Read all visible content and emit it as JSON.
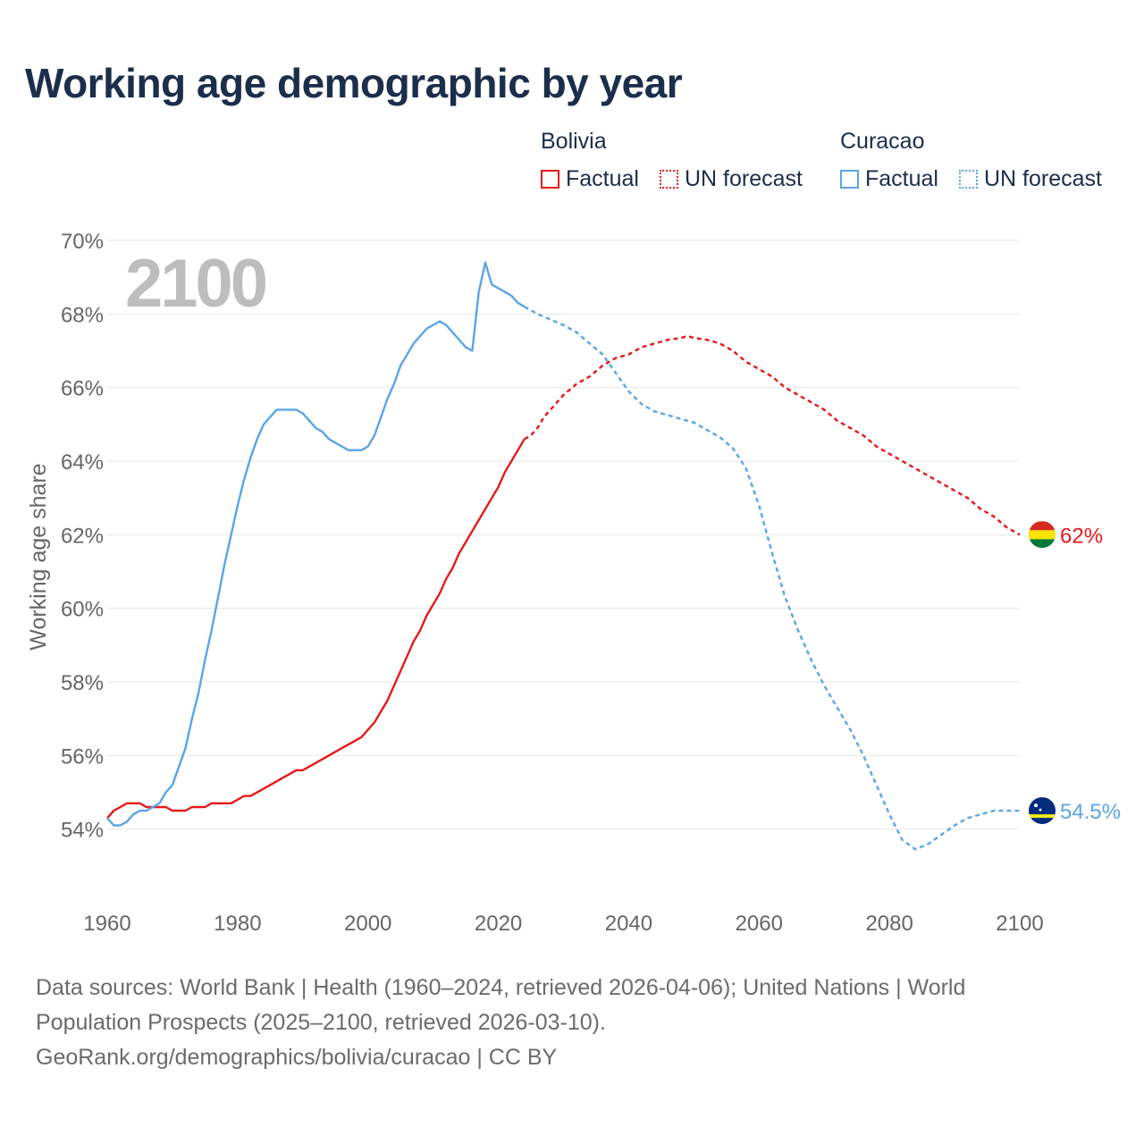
{
  "title": "Working age demographic by year",
  "year_watermark": "2100",
  "legend": {
    "groups": [
      {
        "country": "Bolivia",
        "color": "#e41a1c",
        "factual_label": "Factual",
        "forecast_label": "UN forecast"
      },
      {
        "country": "Curacao",
        "color": "#5aa5e6",
        "factual_label": "Factual",
        "forecast_label": "UN forecast"
      }
    ]
  },
  "footer": {
    "line1": "Data sources: World Bank | Health (1960–2024, retrieved 2026-04-06); United Nations | World",
    "line2": "Population Prospects (2025–2100, retrieved 2026-03-10).",
    "line3": "GeoRank.org/demographics/bolivia/curacao | CC BY"
  },
  "chart_data": {
    "type": "line",
    "ylabel": "Working age share",
    "xlabel": "",
    "xlim": [
      1960,
      2100
    ],
    "ylim": [
      52,
      70
    ],
    "x_ticks": [
      1960,
      1980,
      2000,
      2020,
      2040,
      2060,
      2080,
      2100
    ],
    "y_ticks": [
      54,
      56,
      58,
      60,
      62,
      64,
      66,
      68,
      70
    ],
    "y_tick_labels": [
      "54%",
      "56%",
      "58%",
      "60%",
      "62%",
      "64%",
      "66%",
      "68%",
      "70%"
    ],
    "forecast_start_year": 2024,
    "series": [
      {
        "name": "Bolivia",
        "color": "#e41a1c",
        "end_label": "62%",
        "flag": [
          "#d52b1e",
          "#f9e300",
          "#007934"
        ],
        "points": [
          [
            1960,
            54.3
          ],
          [
            1961,
            54.5
          ],
          [
            1962,
            54.6
          ],
          [
            1963,
            54.7
          ],
          [
            1964,
            54.7
          ],
          [
            1965,
            54.7
          ],
          [
            1966,
            54.6
          ],
          [
            1967,
            54.6
          ],
          [
            1968,
            54.6
          ],
          [
            1969,
            54.6
          ],
          [
            1970,
            54.5
          ],
          [
            1971,
            54.5
          ],
          [
            1972,
            54.5
          ],
          [
            1973,
            54.6
          ],
          [
            1974,
            54.6
          ],
          [
            1975,
            54.6
          ],
          [
            1976,
            54.7
          ],
          [
            1977,
            54.7
          ],
          [
            1978,
            54.7
          ],
          [
            1979,
            54.7
          ],
          [
            1980,
            54.8
          ],
          [
            1981,
            54.9
          ],
          [
            1982,
            54.9
          ],
          [
            1984,
            55.1
          ],
          [
            1986,
            55.3
          ],
          [
            1988,
            55.5
          ],
          [
            1989,
            55.6
          ],
          [
            1990,
            55.6
          ],
          [
            1992,
            55.8
          ],
          [
            1994,
            56.0
          ],
          [
            1996,
            56.2
          ],
          [
            1998,
            56.4
          ],
          [
            1999,
            56.5
          ],
          [
            2000,
            56.7
          ],
          [
            2001,
            56.9
          ],
          [
            2002,
            57.2
          ],
          [
            2003,
            57.5
          ],
          [
            2004,
            57.9
          ],
          [
            2005,
            58.3
          ],
          [
            2006,
            58.7
          ],
          [
            2007,
            59.1
          ],
          [
            2008,
            59.4
          ],
          [
            2009,
            59.8
          ],
          [
            2010,
            60.1
          ],
          [
            2011,
            60.4
          ],
          [
            2012,
            60.8
          ],
          [
            2013,
            61.1
          ],
          [
            2014,
            61.5
          ],
          [
            2015,
            61.8
          ],
          [
            2016,
            62.1
          ],
          [
            2017,
            62.4
          ],
          [
            2018,
            62.7
          ],
          [
            2019,
            63.0
          ],
          [
            2020,
            63.3
          ],
          [
            2021,
            63.7
          ],
          [
            2022,
            64.0
          ],
          [
            2023,
            64.3
          ],
          [
            2024,
            64.6
          ],
          [
            2025,
            64.7
          ],
          [
            2026,
            64.9
          ],
          [
            2027,
            65.2
          ],
          [
            2028,
            65.4
          ],
          [
            2029,
            65.6
          ],
          [
            2030,
            65.8
          ],
          [
            2032,
            66.1
          ],
          [
            2034,
            66.3
          ],
          [
            2036,
            66.6
          ],
          [
            2038,
            66.8
          ],
          [
            2040,
            66.9
          ],
          [
            2042,
            67.1
          ],
          [
            2044,
            67.2
          ],
          [
            2046,
            67.3
          ],
          [
            2048,
            67.35
          ],
          [
            2049,
            67.4
          ],
          [
            2050,
            67.35
          ],
          [
            2052,
            67.3
          ],
          [
            2054,
            67.2
          ],
          [
            2056,
            67.0
          ],
          [
            2058,
            66.7
          ],
          [
            2060,
            66.5
          ],
          [
            2062,
            66.3
          ],
          [
            2064,
            66.0
          ],
          [
            2066,
            65.8
          ],
          [
            2068,
            65.6
          ],
          [
            2070,
            65.4
          ],
          [
            2072,
            65.1
          ],
          [
            2074,
            64.9
          ],
          [
            2076,
            64.7
          ],
          [
            2078,
            64.4
          ],
          [
            2080,
            64.2
          ],
          [
            2082,
            64.0
          ],
          [
            2084,
            63.8
          ],
          [
            2086,
            63.6
          ],
          [
            2088,
            63.4
          ],
          [
            2090,
            63.2
          ],
          [
            2092,
            63.0
          ],
          [
            2094,
            62.7
          ],
          [
            2096,
            62.5
          ],
          [
            2098,
            62.2
          ],
          [
            2100,
            62.0
          ]
        ]
      },
      {
        "name": "Curacao",
        "color": "#5aa5e6",
        "end_label": "54.5%",
        "flag": [
          "#002b7f",
          "#f9e814",
          "#ffffff"
        ],
        "points": [
          [
            1960,
            54.3
          ],
          [
            1961,
            54.1
          ],
          [
            1962,
            54.1
          ],
          [
            1963,
            54.2
          ],
          [
            1964,
            54.4
          ],
          [
            1965,
            54.5
          ],
          [
            1966,
            54.5
          ],
          [
            1967,
            54.6
          ],
          [
            1968,
            54.7
          ],
          [
            1969,
            55.0
          ],
          [
            1970,
            55.2
          ],
          [
            1971,
            55.7
          ],
          [
            1972,
            56.2
          ],
          [
            1973,
            57.0
          ],
          [
            1974,
            57.7
          ],
          [
            1975,
            58.6
          ],
          [
            1976,
            59.4
          ],
          [
            1977,
            60.3
          ],
          [
            1978,
            61.2
          ],
          [
            1979,
            62.0
          ],
          [
            1980,
            62.8
          ],
          [
            1981,
            63.5
          ],
          [
            1982,
            64.1
          ],
          [
            1983,
            64.6
          ],
          [
            1984,
            65.0
          ],
          [
            1985,
            65.2
          ],
          [
            1986,
            65.4
          ],
          [
            1987,
            65.4
          ],
          [
            1988,
            65.4
          ],
          [
            1989,
            65.4
          ],
          [
            1990,
            65.3
          ],
          [
            1991,
            65.1
          ],
          [
            1992,
            64.9
          ],
          [
            1993,
            64.8
          ],
          [
            1994,
            64.6
          ],
          [
            1995,
            64.5
          ],
          [
            1996,
            64.4
          ],
          [
            1997,
            64.3
          ],
          [
            1998,
            64.3
          ],
          [
            1999,
            64.3
          ],
          [
            2000,
            64.4
          ],
          [
            2001,
            64.7
          ],
          [
            2002,
            65.2
          ],
          [
            2003,
            65.7
          ],
          [
            2004,
            66.1
          ],
          [
            2005,
            66.6
          ],
          [
            2006,
            66.9
          ],
          [
            2007,
            67.2
          ],
          [
            2008,
            67.4
          ],
          [
            2009,
            67.6
          ],
          [
            2010,
            67.7
          ],
          [
            2011,
            67.8
          ],
          [
            2012,
            67.7
          ],
          [
            2013,
            67.5
          ],
          [
            2014,
            67.3
          ],
          [
            2015,
            67.1
          ],
          [
            2016,
            67.0
          ],
          [
            2017,
            68.6
          ],
          [
            2018,
            69.4
          ],
          [
            2019,
            68.8
          ],
          [
            2020,
            68.7
          ],
          [
            2021,
            68.6
          ],
          [
            2022,
            68.5
          ],
          [
            2023,
            68.3
          ],
          [
            2024,
            68.2
          ],
          [
            2026,
            68.0
          ],
          [
            2028,
            67.85
          ],
          [
            2030,
            67.7
          ],
          [
            2032,
            67.5
          ],
          [
            2034,
            67.2
          ],
          [
            2036,
            66.9
          ],
          [
            2038,
            66.4
          ],
          [
            2040,
            65.9
          ],
          [
            2042,
            65.55
          ],
          [
            2044,
            65.35
          ],
          [
            2046,
            65.25
          ],
          [
            2048,
            65.15
          ],
          [
            2050,
            65.05
          ],
          [
            2052,
            64.85
          ],
          [
            2054,
            64.65
          ],
          [
            2056,
            64.35
          ],
          [
            2058,
            63.8
          ],
          [
            2060,
            62.8
          ],
          [
            2062,
            61.5
          ],
          [
            2064,
            60.3
          ],
          [
            2066,
            59.4
          ],
          [
            2068,
            58.6
          ],
          [
            2070,
            57.9
          ],
          [
            2072,
            57.3
          ],
          [
            2074,
            56.7
          ],
          [
            2076,
            56.0
          ],
          [
            2078,
            55.2
          ],
          [
            2080,
            54.4
          ],
          [
            2082,
            53.7
          ],
          [
            2084,
            53.45
          ],
          [
            2086,
            53.6
          ],
          [
            2088,
            53.85
          ],
          [
            2090,
            54.1
          ],
          [
            2092,
            54.3
          ],
          [
            2094,
            54.4
          ],
          [
            2096,
            54.5
          ],
          [
            2098,
            54.5
          ],
          [
            2100,
            54.5
          ]
        ]
      }
    ]
  }
}
